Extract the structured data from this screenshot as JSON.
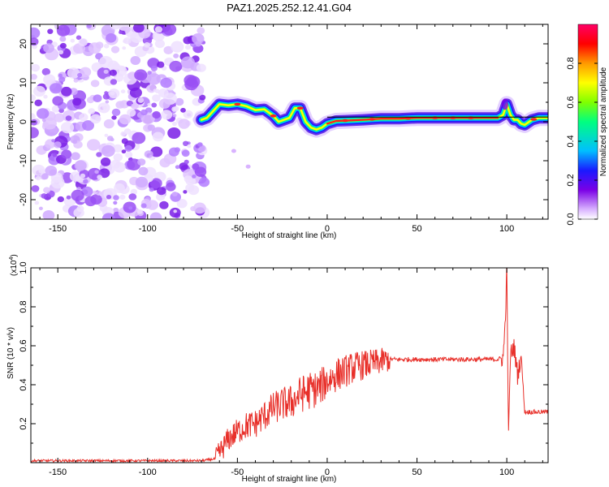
{
  "chart_data": [
    {
      "type": "heatmap",
      "title": "PAZ1.2025.252.12.41.G04",
      "xlabel": "Height of straight line (km)",
      "ylabel": "Frequency (Hz)",
      "xlim": [
        -165,
        123
      ],
      "ylim": [
        -25,
        25
      ],
      "x_ticks": [
        -150,
        -100,
        -50,
        0,
        50,
        100
      ],
      "y_ticks": [
        -20,
        -10,
        0,
        10,
        20
      ],
      "ridge": {
        "x": [
          -70,
          -67,
          -63,
          -60,
          -55,
          -50,
          -45,
          -40,
          -35,
          -30,
          -27,
          -24,
          -21,
          -18,
          -15,
          -12,
          -9,
          -6,
          -3,
          0,
          5,
          10,
          20,
          30,
          40,
          50,
          60,
          70,
          80,
          90,
          95,
          98,
          100,
          102,
          104,
          106,
          108,
          110,
          114,
          118,
          123
        ],
        "freq": [
          0.5,
          1,
          3,
          4.5,
          4.2,
          4.5,
          4,
          3,
          3.2,
          1.5,
          0,
          0.5,
          1,
          3.5,
          3.5,
          0,
          -1.5,
          -2,
          -1.5,
          -0.5,
          0.2,
          0.3,
          0.5,
          0.8,
          0.8,
          1,
          1,
          1,
          1,
          1,
          1,
          1.8,
          4.5,
          1.8,
          0.5,
          0.5,
          -0.5,
          -0.8,
          0.5,
          1,
          1
        ]
      },
      "noise_region": {
        "x_start": -165,
        "x_end": -68,
        "description": "low amplitude noise"
      },
      "colorbar": {
        "label": "Normalized spectral amplitude",
        "range": [
          0,
          1
        ],
        "ticks": [
          "0.0",
          "0.2",
          "0.4",
          "0.6",
          "0.8"
        ],
        "colors": [
          "#ffffff",
          "#d9b3ff",
          "#7a00e6",
          "#1a1aff",
          "#00bfff",
          "#00ff80",
          "#80ff00",
          "#ffff00",
          "#ff9900",
          "#ff0000",
          "#ff0066"
        ]
      }
    },
    {
      "type": "line",
      "xlabel": "Height of straight line (km)",
      "ylabel": "SNR (10 * v/v)",
      "y_multiplier": "(x10",
      "y_multiplier_exp": "4",
      "y_multiplier_close": ")",
      "xlim": [
        -165,
        123
      ],
      "ylim": [
        0,
        1.0
      ],
      "x_ticks": [
        -150,
        -100,
        -50,
        0,
        50,
        100
      ],
      "y_ticks": [
        0.2,
        0.4,
        0.6,
        0.8,
        1.0
      ],
      "color": "#e8302a",
      "series": [
        {
          "name": "SNR",
          "x": [
            -165,
            -150,
            -130,
            -110,
            -90,
            -70,
            -62,
            -60,
            -55,
            -50,
            -45,
            -40,
            -35,
            -30,
            -25,
            -20,
            -15,
            -10,
            -5,
            0,
            5,
            10,
            15,
            20,
            25,
            30,
            35,
            40,
            50,
            60,
            70,
            80,
            90,
            95,
            98,
            99,
            100,
            101,
            102,
            104,
            106,
            108,
            110,
            115,
            123
          ],
          "y": [
            0.01,
            0.01,
            0.01,
            0.01,
            0.01,
            0.01,
            0.02,
            0.05,
            0.12,
            0.16,
            0.19,
            0.2,
            0.24,
            0.28,
            0.3,
            0.31,
            0.35,
            0.37,
            0.38,
            0.42,
            0.45,
            0.47,
            0.49,
            0.5,
            0.51,
            0.52,
            0.53,
            0.53,
            0.53,
            0.53,
            0.53,
            0.53,
            0.53,
            0.53,
            0.54,
            0.7,
            0.98,
            0.12,
            0.55,
            0.6,
            0.45,
            0.55,
            0.26,
            0.26,
            0.26
          ]
        }
      ]
    }
  ]
}
